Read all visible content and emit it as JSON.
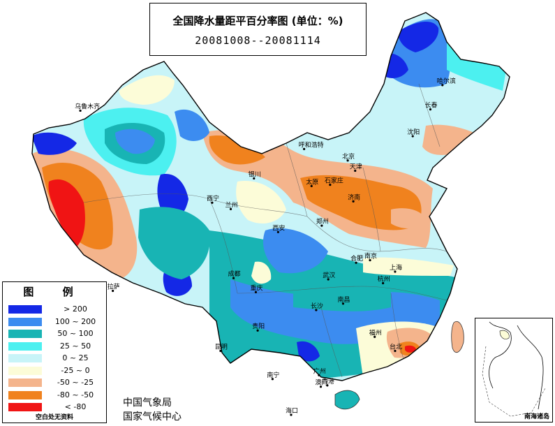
{
  "title": {
    "line1": "全国降水量距平百分率图 (单位：%)",
    "line2": "20081008--20081114"
  },
  "legend": {
    "title": "图 例",
    "items": [
      {
        "label": "> 200",
        "color": "#1428e6"
      },
      {
        "label": "100 ~ 200",
        "color": "#3c8cf0"
      },
      {
        "label": "50 ~ 100",
        "color": "#18b4b4"
      },
      {
        "label": "25 ~ 50",
        "color": "#4cf0f0"
      },
      {
        "label": "0 ~ 25",
        "color": "#c8f4f8"
      },
      {
        "label": "-25 ~ 0",
        "color": "#fcfcd8"
      },
      {
        "label": "-50 ~ -25",
        "color": "#f4b48c"
      },
      {
        "label": "-80 ~ -50",
        "color": "#f0821e"
      },
      {
        "label": "< -80",
        "color": "#f01414"
      }
    ],
    "note": "空白处无资料"
  },
  "organizations": [
    "中国气象局",
    "国家气候中心"
  ],
  "inset_label": "南海诸岛",
  "cities": [
    {
      "name": "乌鲁木齐",
      "lon": 87.6,
      "lat": 43.8
    },
    {
      "name": "哈尔滨",
      "lon": 126.6,
      "lat": 45.8
    },
    {
      "name": "长春",
      "lon": 125.3,
      "lat": 43.9
    },
    {
      "name": "沈阳",
      "lon": 123.4,
      "lat": 41.8
    },
    {
      "name": "呼和浩特",
      "lon": 111.7,
      "lat": 40.8
    },
    {
      "name": "北京",
      "lon": 116.4,
      "lat": 39.9
    },
    {
      "name": "天津",
      "lon": 117.2,
      "lat": 39.1
    },
    {
      "name": "太原",
      "lon": 112.5,
      "lat": 37.9
    },
    {
      "name": "石家庄",
      "lon": 114.5,
      "lat": 38.0
    },
    {
      "name": "银川",
      "lon": 106.3,
      "lat": 38.5
    },
    {
      "name": "济南",
      "lon": 117.0,
      "lat": 36.7
    },
    {
      "name": "西宁",
      "lon": 101.8,
      "lat": 36.6
    },
    {
      "name": "兰州",
      "lon": 103.8,
      "lat": 36.1
    },
    {
      "name": "西安",
      "lon": 108.9,
      "lat": 34.3
    },
    {
      "name": "郑州",
      "lon": 113.6,
      "lat": 34.8
    },
    {
      "name": "合肥",
      "lon": 117.3,
      "lat": 31.9
    },
    {
      "name": "南京",
      "lon": 118.8,
      "lat": 32.1
    },
    {
      "name": "上海",
      "lon": 121.5,
      "lat": 31.2
    },
    {
      "name": "武汉",
      "lon": 114.3,
      "lat": 30.6
    },
    {
      "name": "成都",
      "lon": 104.1,
      "lat": 30.7
    },
    {
      "name": "拉萨",
      "lon": 91.1,
      "lat": 29.7
    },
    {
      "name": "重庆",
      "lon": 106.5,
      "lat": 29.6
    },
    {
      "name": "杭州",
      "lon": 120.2,
      "lat": 30.3
    },
    {
      "name": "长沙",
      "lon": 113.0,
      "lat": 28.2
    },
    {
      "name": "南昌",
      "lon": 115.9,
      "lat": 28.7
    },
    {
      "name": "贵阳",
      "lon": 106.7,
      "lat": 26.6
    },
    {
      "name": "福州",
      "lon": 119.3,
      "lat": 26.1
    },
    {
      "name": "台北",
      "lon": 121.5,
      "lat": 25.0
    },
    {
      "name": "昆明",
      "lon": 102.7,
      "lat": 25.0
    },
    {
      "name": "南宁",
      "lon": 108.3,
      "lat": 22.8
    },
    {
      "name": "广州",
      "lon": 113.3,
      "lat": 23.1
    },
    {
      "name": "香港",
      "lon": 114.2,
      "lat": 22.3
    },
    {
      "name": "澳门",
      "lon": 113.5,
      "lat": 22.2
    },
    {
      "name": "海口",
      "lon": 110.3,
      "lat": 20.0
    }
  ]
}
